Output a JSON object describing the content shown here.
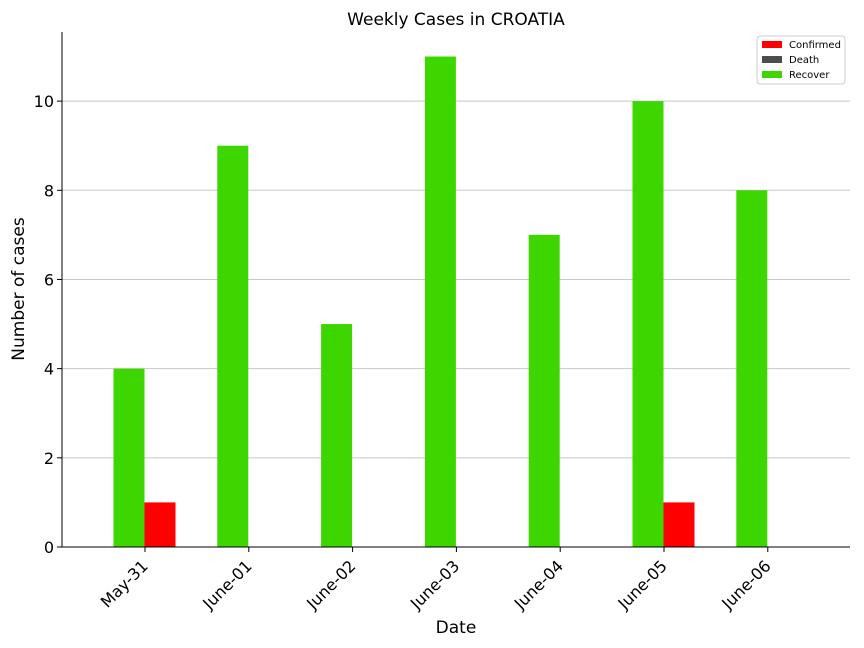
{
  "chart_data": {
    "type": "bar",
    "title": "Weekly Cases in CROATIA",
    "xlabel": "Date",
    "ylabel": "Number of cases",
    "categories": [
      "May-31",
      "June-01",
      "June-02",
      "June-03",
      "June-04",
      "June-05",
      "June-06"
    ],
    "series": [
      {
        "name": "Confirmed",
        "color": "#ff0000",
        "values": [
          1,
          0,
          0,
          0,
          0,
          1,
          0
        ]
      },
      {
        "name": "Death",
        "color": "#4d4d4d",
        "values": [
          0,
          0,
          0,
          0,
          0,
          0,
          0
        ]
      },
      {
        "name": "Recover",
        "color": "#3dd600",
        "values": [
          4,
          9,
          5,
          11,
          7,
          10,
          8
        ]
      }
    ],
    "ylim": [
      0,
      11.55
    ],
    "yticks": [
      0,
      2,
      4,
      6,
      8,
      10
    ],
    "grid": "horizontal",
    "legend_position": "top-right"
  }
}
